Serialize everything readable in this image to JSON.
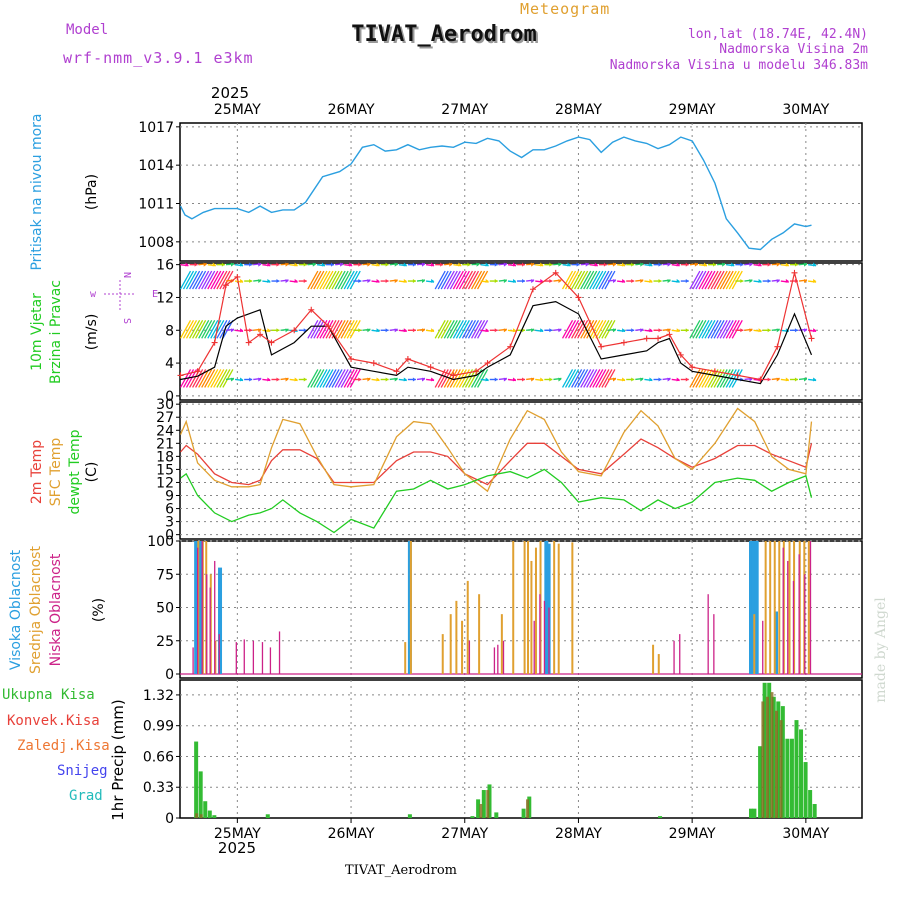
{
  "header": {
    "model_label": "Model",
    "model_name": "wrf-nmm_v3.9.1 e3km",
    "chart_kind": "Meteogram",
    "station": "TIVAT_Aerodrom",
    "lonlat": "lon,lat (18.74E, 42.4N)",
    "height": "Nadmorska Visina 2m",
    "model_height": "Nadmorska Visina u modelu 346.83m",
    "year": "2025",
    "footer_station": "TIVAT_Aerodrom",
    "credit": "made by Angel"
  },
  "colors": {
    "pressure": "#2b9fe0",
    "wind_green": "#22cc22",
    "wind_speed": "#000000",
    "wind_gust": "#ee3333",
    "temp2m": "#e8413a",
    "sfc": "#e0a030",
    "dewpt": "#22cc22",
    "cloud_high": "#2b9fe0",
    "cloud_mid": "#e0a030",
    "cloud_low": "#cc2288",
    "rain_total": "#33bb33",
    "rain_conv": "#e8413a",
    "rain_frozen": "#ee7733",
    "snow": "#4444ee",
    "grad": "#22bbbb",
    "grid": "#888888",
    "legend_purple": "#b040d0"
  },
  "chart_data": [
    {
      "type": "line",
      "name": "pressure",
      "ylabel_main": "Pritisak na nivou mora",
      "ylabel_unit": "(hPa)",
      "yticks": [
        1008,
        1011,
        1014,
        1017
      ],
      "ylim": [
        1006.5,
        1017.3
      ],
      "x_days": [
        0,
        0.04,
        0.1,
        0.2,
        0.3,
        0.5,
        0.6,
        0.7,
        0.8,
        0.9,
        1.0,
        1.1,
        1.25,
        1.4,
        1.5,
        1.6,
        1.7,
        1.8,
        1.9,
        2.0,
        2.1,
        2.2,
        2.3,
        2.4,
        2.5,
        2.6,
        2.7,
        2.8,
        2.9,
        3.0,
        3.1,
        3.2,
        3.3,
        3.4,
        3.5,
        3.6,
        3.7,
        3.8,
        3.9,
        4.0,
        4.1,
        4.2,
        4.3,
        4.4,
        4.5,
        4.6,
        4.7,
        4.75,
        4.8,
        4.9,
        5.0,
        5.1,
        5.2,
        5.3,
        5.4,
        5.5,
        5.55
      ],
      "values": [
        1010.8,
        1010.1,
        1009.8,
        1010.3,
        1010.6,
        1010.6,
        1010.3,
        1010.8,
        1010.3,
        1010.5,
        1010.5,
        1011.1,
        1013.1,
        1013.5,
        1014.1,
        1015.4,
        1015.6,
        1015.1,
        1015.2,
        1015.6,
        1015.2,
        1015.4,
        1015.5,
        1015.4,
        1015.8,
        1015.7,
        1016.1,
        1015.9,
        1015.1,
        1014.6,
        1015.2,
        1015.2,
        1015.5,
        1015.9,
        1016.2,
        1016.0,
        1015.0,
        1015.8,
        1016.2,
        1015.9,
        1015.7,
        1015.3,
        1015.6,
        1016.2,
        1015.9,
        1014.4,
        1012.6,
        1011.2,
        1009.8,
        1008.7,
        1007.5,
        1007.4,
        1008.2,
        1008.7,
        1009.4,
        1009.2,
        1009.3
      ]
    },
    {
      "type": "barb",
      "name": "wind",
      "ylabel_main": "10m Vjetar",
      "ylabel_sub": "Brzina i Pravac",
      "ylabel_unit": "(m/s)",
      "yticks": [
        0,
        4,
        8,
        12,
        16
      ],
      "ylim": [
        -0.5,
        16.2
      ],
      "series": [
        {
          "name": "speed",
          "x_days": [
            0,
            0.15,
            0.3,
            0.4,
            0.5,
            0.6,
            0.7,
            0.8,
            1.0,
            1.15,
            1.3,
            1.5,
            1.7,
            1.9,
            2.0,
            2.2,
            2.4,
            2.6,
            2.7,
            2.9,
            3.1,
            3.3,
            3.5,
            3.7,
            3.9,
            4.1,
            4.2,
            4.3,
            4.4,
            4.5,
            4.7,
            4.9,
            5.1,
            5.25,
            5.4,
            5.55
          ],
          "values": [
            2.0,
            2.4,
            3.5,
            8.5,
            9.5,
            10.0,
            10.5,
            5.0,
            6.5,
            8.5,
            8.5,
            3.5,
            3.0,
            2.5,
            3.5,
            3.0,
            2.0,
            2.5,
            3.5,
            5.0,
            11.0,
            11.5,
            10.0,
            4.5,
            5.0,
            5.5,
            6.5,
            7.0,
            4.0,
            3.0,
            2.5,
            2.0,
            1.5,
            5.0,
            10.0,
            5.0
          ]
        },
        {
          "name": "gust",
          "x_days": [
            0,
            0.15,
            0.3,
            0.4,
            0.5,
            0.6,
            0.7,
            0.8,
            1.0,
            1.15,
            1.3,
            1.5,
            1.7,
            1.9,
            2.0,
            2.2,
            2.4,
            2.6,
            2.7,
            2.9,
            3.1,
            3.3,
            3.5,
            3.7,
            3.9,
            4.1,
            4.2,
            4.3,
            4.4,
            4.5,
            4.7,
            4.9,
            5.1,
            5.25,
            5.4,
            5.55
          ],
          "values": [
            2.5,
            3.0,
            6.5,
            13.5,
            14.5,
            6.5,
            7.5,
            6.5,
            8.0,
            10.5,
            8.5,
            4.5,
            4.0,
            3.0,
            4.5,
            3.5,
            2.5,
            3.0,
            4.0,
            6.0,
            13.0,
            15.0,
            12.0,
            6.0,
            6.5,
            7.0,
            7.0,
            7.5,
            5.0,
            3.5,
            3.0,
            2.5,
            2.0,
            6.0,
            15.0,
            7.0
          ]
        }
      ],
      "legend_arrows": [
        "w",
        "N",
        "E",
        "S"
      ],
      "rows": [
        2,
        8,
        14,
        16
      ]
    },
    {
      "type": "line",
      "name": "temperature",
      "ylabel_main": "2m Temp",
      "ylabel_sub": "SFC Temp",
      "ylabel_sub2": "dewpt Temp",
      "ylabel_unit": "(C)",
      "yticks": [
        0,
        3,
        6,
        9,
        12,
        15,
        18,
        21,
        24,
        27,
        30
      ],
      "ylim": [
        -1,
        30.5
      ],
      "series": [
        {
          "name": "2m Temp",
          "x_days": [
            0,
            0.05,
            0.15,
            0.3,
            0.45,
            0.6,
            0.7,
            0.8,
            0.9,
            1.05,
            1.2,
            1.35,
            1.5,
            1.7,
            1.9,
            2.05,
            2.2,
            2.35,
            2.5,
            2.7,
            2.9,
            3.05,
            3.2,
            3.35,
            3.5,
            3.7,
            3.9,
            4.05,
            4.2,
            4.35,
            4.5,
            4.7,
            4.9,
            5.05,
            5.2,
            5.35,
            5.5,
            5.55
          ],
          "values": [
            19.0,
            20.5,
            18.5,
            14.0,
            12.0,
            11.5,
            12.5,
            17.0,
            19.5,
            19.5,
            17.5,
            12.0,
            12.0,
            12.0,
            17.0,
            19.0,
            19.0,
            18.0,
            14.0,
            11.5,
            17.0,
            21.0,
            21.0,
            18.0,
            15.0,
            14.0,
            18.5,
            22.0,
            20.0,
            17.5,
            15.5,
            17.5,
            20.5,
            20.5,
            18.5,
            17.0,
            15.5,
            21.0
          ]
        },
        {
          "name": "SFC Temp",
          "x_days": [
            0,
            0.05,
            0.15,
            0.3,
            0.45,
            0.6,
            0.7,
            0.8,
            0.9,
            1.05,
            1.2,
            1.35,
            1.5,
            1.7,
            1.9,
            2.05,
            2.2,
            2.35,
            2.5,
            2.7,
            2.9,
            3.05,
            3.2,
            3.35,
            3.5,
            3.7,
            3.9,
            4.05,
            4.2,
            4.35,
            4.5,
            4.7,
            4.9,
            5.05,
            5.2,
            5.35,
            5.5,
            5.55
          ],
          "values": [
            23.0,
            26.0,
            16.5,
            12.5,
            11.0,
            11.0,
            11.5,
            20.0,
            26.5,
            25.5,
            18.0,
            11.5,
            11.0,
            11.5,
            22.5,
            26.0,
            25.5,
            20.0,
            14.0,
            10.0,
            22.0,
            28.5,
            26.5,
            19.0,
            14.5,
            13.5,
            23.5,
            28.5,
            25.0,
            17.5,
            15.0,
            21.0,
            29.0,
            26.0,
            18.0,
            15.0,
            14.0,
            26.0
          ]
        },
        {
          "name": "dewpt Temp",
          "x_days": [
            0,
            0.05,
            0.15,
            0.3,
            0.45,
            0.6,
            0.7,
            0.8,
            0.9,
            1.05,
            1.2,
            1.35,
            1.5,
            1.7,
            1.9,
            2.05,
            2.2,
            2.35,
            2.5,
            2.7,
            2.9,
            3.05,
            3.2,
            3.35,
            3.5,
            3.7,
            3.9,
            4.05,
            4.2,
            4.35,
            4.5,
            4.7,
            4.9,
            5.05,
            5.2,
            5.35,
            5.5,
            5.55
          ],
          "values": [
            13.0,
            14.0,
            9.0,
            5.0,
            3.0,
            4.5,
            5.0,
            6.0,
            8.0,
            5.0,
            3.0,
            0.5,
            3.5,
            1.5,
            10.0,
            10.5,
            12.5,
            10.5,
            11.5,
            13.5,
            14.5,
            13.0,
            15.0,
            12.0,
            7.5,
            8.5,
            8.0,
            5.5,
            8.0,
            6.0,
            7.5,
            12.0,
            13.0,
            12.5,
            10.0,
            12.0,
            13.5,
            8.5
          ]
        }
      ]
    },
    {
      "type": "bar",
      "name": "cloud",
      "ylabel_main": "Visoka Oblacnost",
      "ylabel_sub": "Srednja Oblacnost",
      "ylabel_sub2": "Niska Oblacnost",
      "ylabel_unit": "(%)",
      "yticks": [
        0,
        25,
        50,
        75,
        100
      ],
      "ylim": [
        -3,
        100
      ],
      "series": [
        {
          "name": "Visoka Oblacnost",
          "x_days": [
            0.12,
            0.14,
            0.16,
            0.33,
            2.0,
            3.2,
            3.22,
            5.0,
            5.02,
            5.05,
            5.22
          ],
          "values": [
            100,
            100,
            100,
            80,
            100,
            100,
            98,
            100,
            100,
            100,
            47
          ]
        },
        {
          "name": "Srednja Oblacnost",
          "x_days": [
            0.13,
            0.17,
            0.2,
            0.24,
            0.28,
            1.95,
            2.0,
            2.28,
            2.35,
            2.4,
            2.45,
            2.5,
            2.6,
            2.8,
            2.9,
            3.0,
            3.03,
            3.06,
            3.1,
            3.14,
            3.26,
            3.3,
            3.42,
            4.13,
            4.18,
            5.02,
            5.12,
            5.16,
            5.2,
            5.24,
            5.28,
            5.33,
            5.37,
            5.42,
            5.46,
            5.5
          ],
          "values": [
            100,
            100,
            100,
            75,
            25,
            24,
            100,
            30,
            45,
            55,
            40,
            70,
            60,
            45,
            100,
            100,
            100,
            85,
            95,
            100,
            100,
            98,
            99,
            22,
            15,
            45,
            100,
            100,
            100,
            100,
            100,
            100,
            100,
            100,
            100,
            100
          ]
        },
        {
          "name": "Niska Oblacnost",
          "x_days": [
            0.07,
            0.11,
            0.15,
            0.19,
            0.22,
            0.26,
            0.3,
            0.45,
            0.52,
            0.6,
            0.68,
            0.75,
            0.83,
            2.5,
            2.72,
            2.75,
            2.8,
            3.07,
            3.12,
            3.16,
            3.2,
            4.3,
            4.35,
            4.6,
            4.65,
            5.08,
            5.26,
            5.3,
            5.35,
            5.4,
            5.45,
            5.5
          ],
          "values": [
            20,
            95,
            100,
            75,
            65,
            85,
            30,
            24,
            26,
            25,
            24,
            20,
            32,
            25,
            20,
            22,
            25,
            40,
            60,
            55,
            50,
            25,
            30,
            60,
            45,
            40,
            95,
            85,
            70,
            90,
            75,
            100
          ]
        }
      ]
    },
    {
      "type": "bar",
      "name": "precip",
      "ylabel_main": "1hr Precip",
      "ylabel_unit": "(mm)",
      "legend": [
        "Ukupna Kisa",
        "Konvek.Kisa",
        "Zaledj.Kisa",
        "Snijeg",
        "Grad"
      ],
      "yticks": [
        0,
        0.33,
        0.66,
        0.99,
        1.32
      ],
      "ytick_labels": [
        "0",
        "0.33",
        "0.66",
        "0.99",
        "1.32"
      ],
      "ylim": [
        0,
        1.48
      ],
      "series": [
        {
          "name": "Ukupna Kisa",
          "x_days": [
            0.12,
            0.16,
            0.2,
            0.24,
            0.28,
            0.75,
            2.0,
            2.55,
            2.6,
            2.65,
            2.7,
            2.76,
            3.0,
            3.05,
            4.2,
            5.0,
            5.03,
            5.08,
            5.12,
            5.16,
            5.2,
            5.24,
            5.28,
            5.32,
            5.36,
            5.4,
            5.44,
            5.48,
            5.52,
            5.56
          ],
          "values": [
            0.82,
            0.5,
            0.18,
            0.08,
            0.03,
            0.04,
            0.04,
            0.02,
            0.2,
            0.3,
            0.36,
            0.06,
            0.1,
            0.23,
            0.02,
            0.1,
            0.1,
            0.77,
            1.45,
            1.45,
            1.3,
            1.25,
            1.2,
            0.85,
            0.85,
            1.05,
            0.95,
            0.6,
            0.3,
            0.15
          ]
        },
        {
          "name": "Konvek.Kisa",
          "x_days": [
            0.12,
            0.16,
            2.62,
            2.68,
            3.03,
            5.1,
            5.14,
            5.18,
            5.22,
            5.26
          ],
          "values": [
            0.05,
            0.04,
            0.15,
            0.3,
            0.2,
            1.25,
            1.3,
            1.35,
            1.15,
            1.05
          ]
        }
      ]
    }
  ],
  "x_axis": {
    "day_labels": [
      "25MAY",
      "26MAY",
      "27MAY",
      "28MAY",
      "29MAY",
      "30MAY"
    ],
    "year": "2025"
  }
}
